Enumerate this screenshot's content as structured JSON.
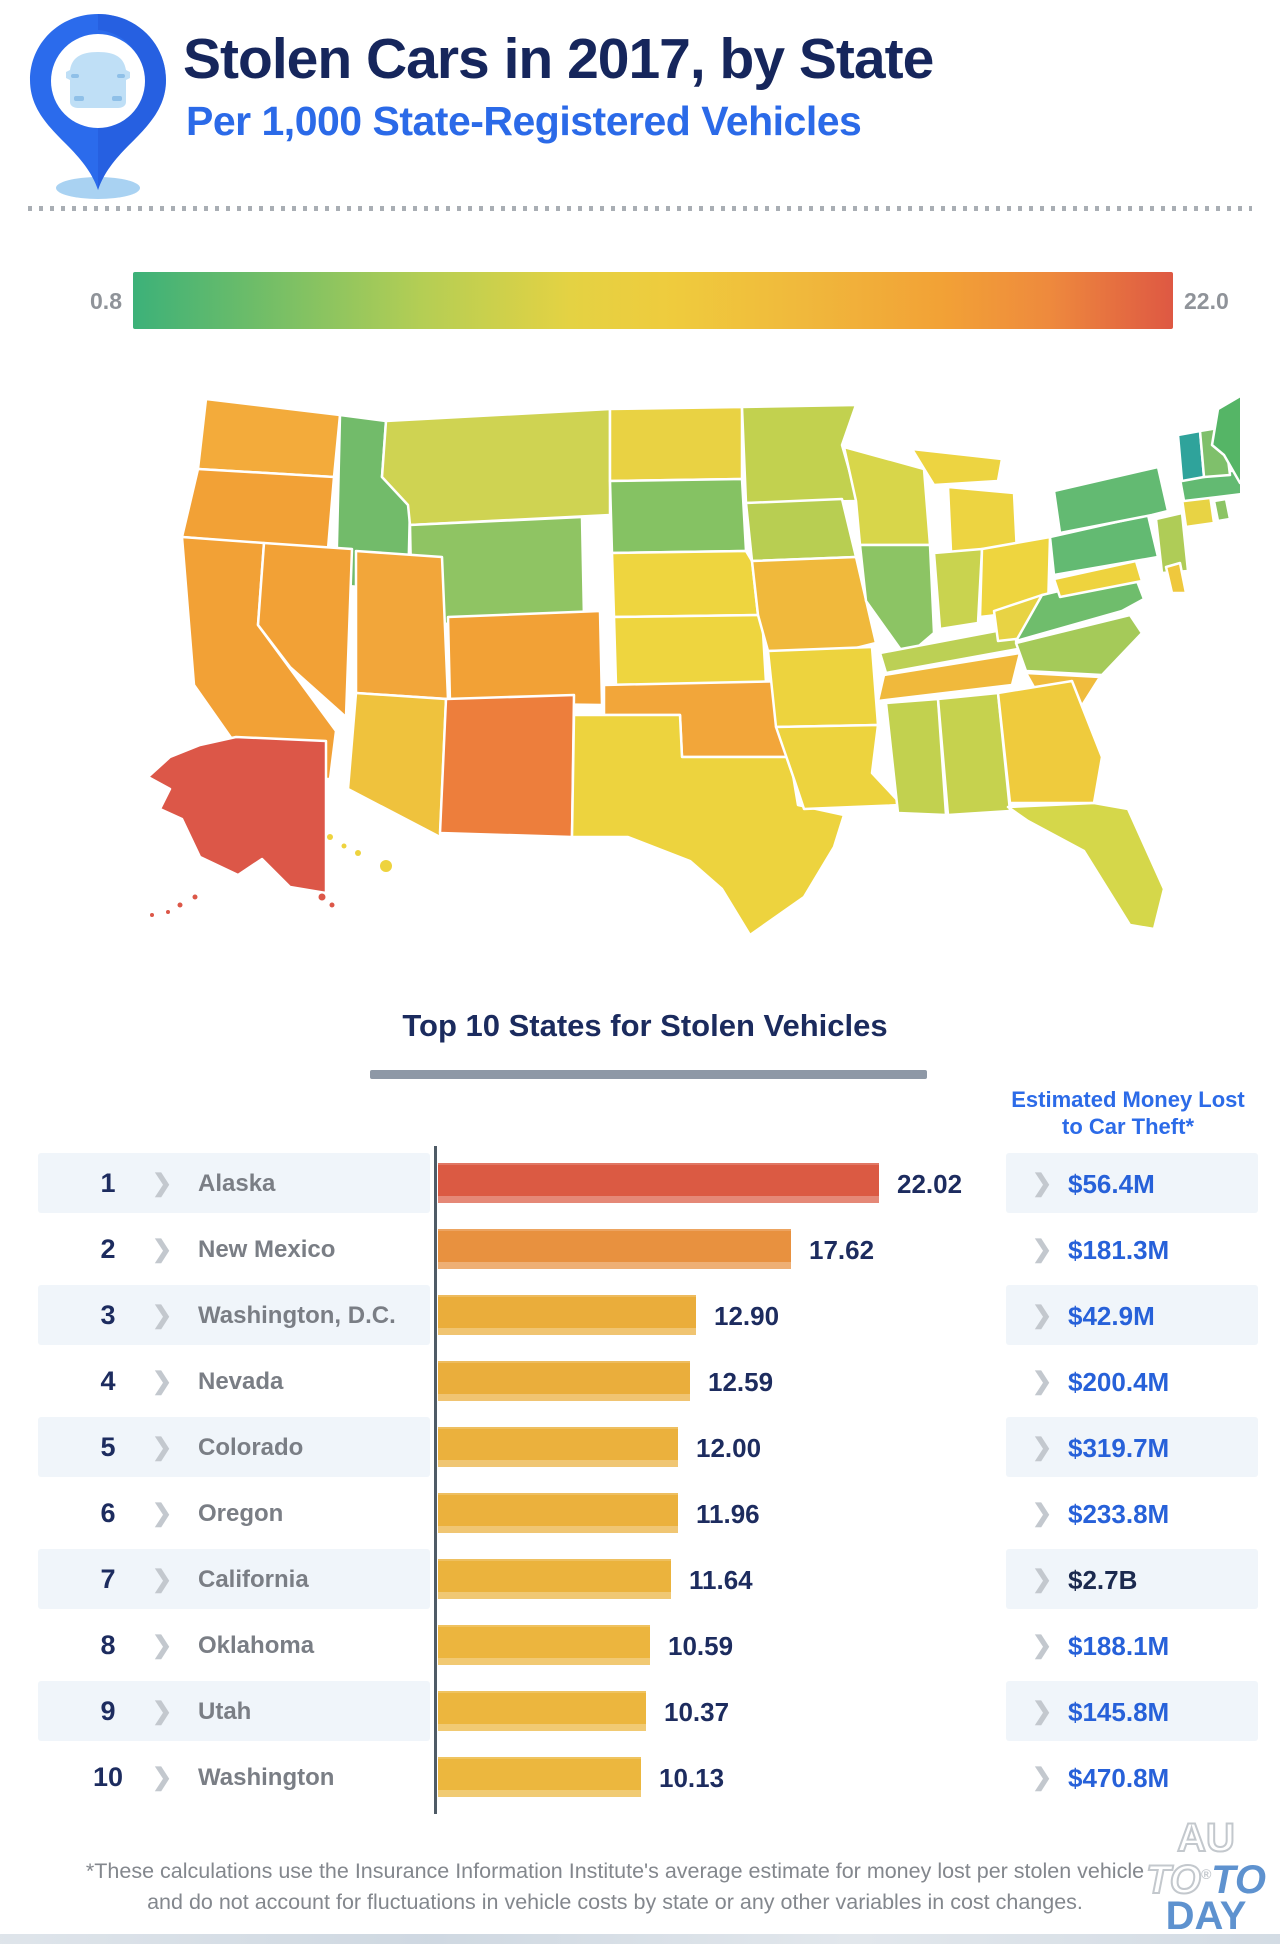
{
  "header": {
    "title": "Stolen Cars in 2017, by State",
    "subtitle": "Per 1,000 State-Registered Vehicles",
    "title_color": "#16265C",
    "subtitle_color": "#2B6AE8",
    "pin_icon": "location-pin-with-car-icon"
  },
  "legend": {
    "min_label": "0.8",
    "max_label": "22.0",
    "gradient_stops": [
      "#3CB179 0%",
      "#6FBD68 12%",
      "#B5CE54 28%",
      "#E4D243 42%",
      "#EFCB3D 52%",
      "#F0B93C 64%",
      "#F2A136 78%",
      "#EE8A3D 88%",
      "#DE5843 100%"
    ]
  },
  "map": {
    "state_colors": {
      "WA": "#F3AB3B",
      "OR": "#F2A136",
      "CA": "#F2A136",
      "ID": "#72BB6A",
      "NV": "#F2A136",
      "MT": "#CFD352",
      "WY": "#8FC463",
      "UT": "#F2A63A",
      "CO": "#F2A136",
      "AZ": "#EFC23D",
      "NM": "#ED7E3C",
      "ND": "#E9D243",
      "SD": "#85C263",
      "NE": "#EED53F",
      "KS": "#EED53F",
      "OK": "#F2A63A",
      "TX": "#EDD33E",
      "MN": "#C2D14F",
      "IA": "#B8CE52",
      "MO": "#F0B93C",
      "WI": "#D8D64A",
      "IL": "#8CC464",
      "IN": "#C9D34F",
      "OH": "#EED53F",
      "MI": "#EDD441",
      "KY": "#BCD055",
      "TN": "#F0B93C",
      "AR": "#EDD33E",
      "LA": "#EDD33E",
      "MS": "#C2D14F",
      "AL": "#C6D24E",
      "GA": "#EFCB3D",
      "FL": "#D5D74A",
      "SC": "#F0BC3D",
      "NC": "#A5CA59",
      "VA": "#6FBD6C",
      "WV": "#E8D344",
      "MD": "#EED33E",
      "DE": "#EFC83D",
      "PA": "#63BA72",
      "NY": "#63BA72",
      "NJ": "#AFCC57",
      "CT": "#E8D344",
      "RI": "#8CC464",
      "MA": "#63BA72",
      "VT": "#2FA39B",
      "NH": "#7FC06B",
      "ME": "#55B566",
      "AK": "#DC5748",
      "HI": "#EED33E"
    }
  },
  "top10": {
    "title": "Top 10 States for Stolen Vehicles",
    "money_header_line1": "Estimated Money Lost",
    "money_header_line2": "to Car Theft*",
    "rows": [
      {
        "rank": "1",
        "state": "Alaska",
        "value": "22.02",
        "money": "$56.4M",
        "bar_color": "#DB5A43",
        "money_color": "#2761D9"
      },
      {
        "rank": "2",
        "state": "New Mexico",
        "value": "17.62",
        "money": "$181.3M",
        "bar_color": "#E8913F",
        "money_color": "#2761D9"
      },
      {
        "rank": "3",
        "state": "Washington, D.C.",
        "value": "12.90",
        "money": "$42.9M",
        "bar_color": "#EAAD3B",
        "money_color": "#2761D9"
      },
      {
        "rank": "4",
        "state": "Nevada",
        "value": "12.59",
        "money": "$200.4M",
        "bar_color": "#EAAE3C",
        "money_color": "#2761D9"
      },
      {
        "rank": "5",
        "state": "Colorado",
        "value": "12.00",
        "money": "$319.7M",
        "bar_color": "#EBB13D",
        "money_color": "#2761D9"
      },
      {
        "rank": "6",
        "state": "Oregon",
        "value": "11.96",
        "money": "$233.8M",
        "bar_color": "#EBB13D",
        "money_color": "#2761D9"
      },
      {
        "rank": "7",
        "state": "California",
        "value": "11.64",
        "money": "$2.7B",
        "bar_color": "#EBB33D",
        "money_color": "#1C2A4F"
      },
      {
        "rank": "8",
        "state": "Oklahoma",
        "value": "10.59",
        "money": "$188.1M",
        "bar_color": "#ECB53E",
        "money_color": "#2761D9"
      },
      {
        "rank": "9",
        "state": "Utah",
        "value": "10.37",
        "money": "$145.8M",
        "bar_color": "#ECB63E",
        "money_color": "#2761D9"
      },
      {
        "rank": "10",
        "state": "Washington",
        "value": "10.13",
        "money": "$470.8M",
        "bar_color": "#ECB73E",
        "money_color": "#2761D9"
      }
    ],
    "max_value": 22.02
  },
  "footnote": {
    "text": "*These calculations use the Insurance Information Institute's average estimate for money lost per stolen vehicle and do not account for fluctuations in vehicle costs by state or any other variables in cost changes."
  },
  "watermark": {
    "line1": "AU",
    "line2_white": "TO",
    "reg": "®",
    "line2_blue": "TO",
    "line3": "DAY"
  },
  "chart_data": [
    {
      "type": "bar",
      "orientation": "horizontal",
      "title": "Top 10 States for Stolen Vehicles",
      "categories": [
        "Alaska",
        "New Mexico",
        "Washington, D.C.",
        "Nevada",
        "Colorado",
        "Oregon",
        "California",
        "Oklahoma",
        "Utah",
        "Washington"
      ],
      "values": [
        22.02,
        17.62,
        12.9,
        12.59,
        12.0,
        11.96,
        11.64,
        10.59,
        10.37,
        10.13
      ],
      "xlabel": "Stolen cars per 1,000 state-registered vehicles",
      "xlim": [
        0,
        22.02
      ],
      "data_labels": true,
      "secondary_series": {
        "name": "Estimated Money Lost to Car Theft",
        "values": [
          "$56.4M",
          "$181.3M",
          "$42.9M",
          "$200.4M",
          "$319.7M",
          "$233.8M",
          "$2.7B",
          "$188.1M",
          "$145.8M",
          "$470.8M"
        ]
      }
    },
    {
      "type": "heatmap",
      "subtype": "us-choropleth",
      "title": "Stolen Cars in 2017, by State — Per 1,000 State-Registered Vehicles",
      "color_scale": {
        "min": 0.8,
        "max": 22.0,
        "min_color": "#3CB179",
        "max_color": "#DE5843"
      },
      "known_values": {
        "AK": 22.02,
        "NM": 17.62,
        "DC": 12.9,
        "NV": 12.59,
        "CO": 12.0,
        "OR": 11.96,
        "CA": 11.64,
        "OK": 10.59,
        "UT": 10.37,
        "WA": 10.13
      },
      "legend_position": "top"
    }
  ]
}
